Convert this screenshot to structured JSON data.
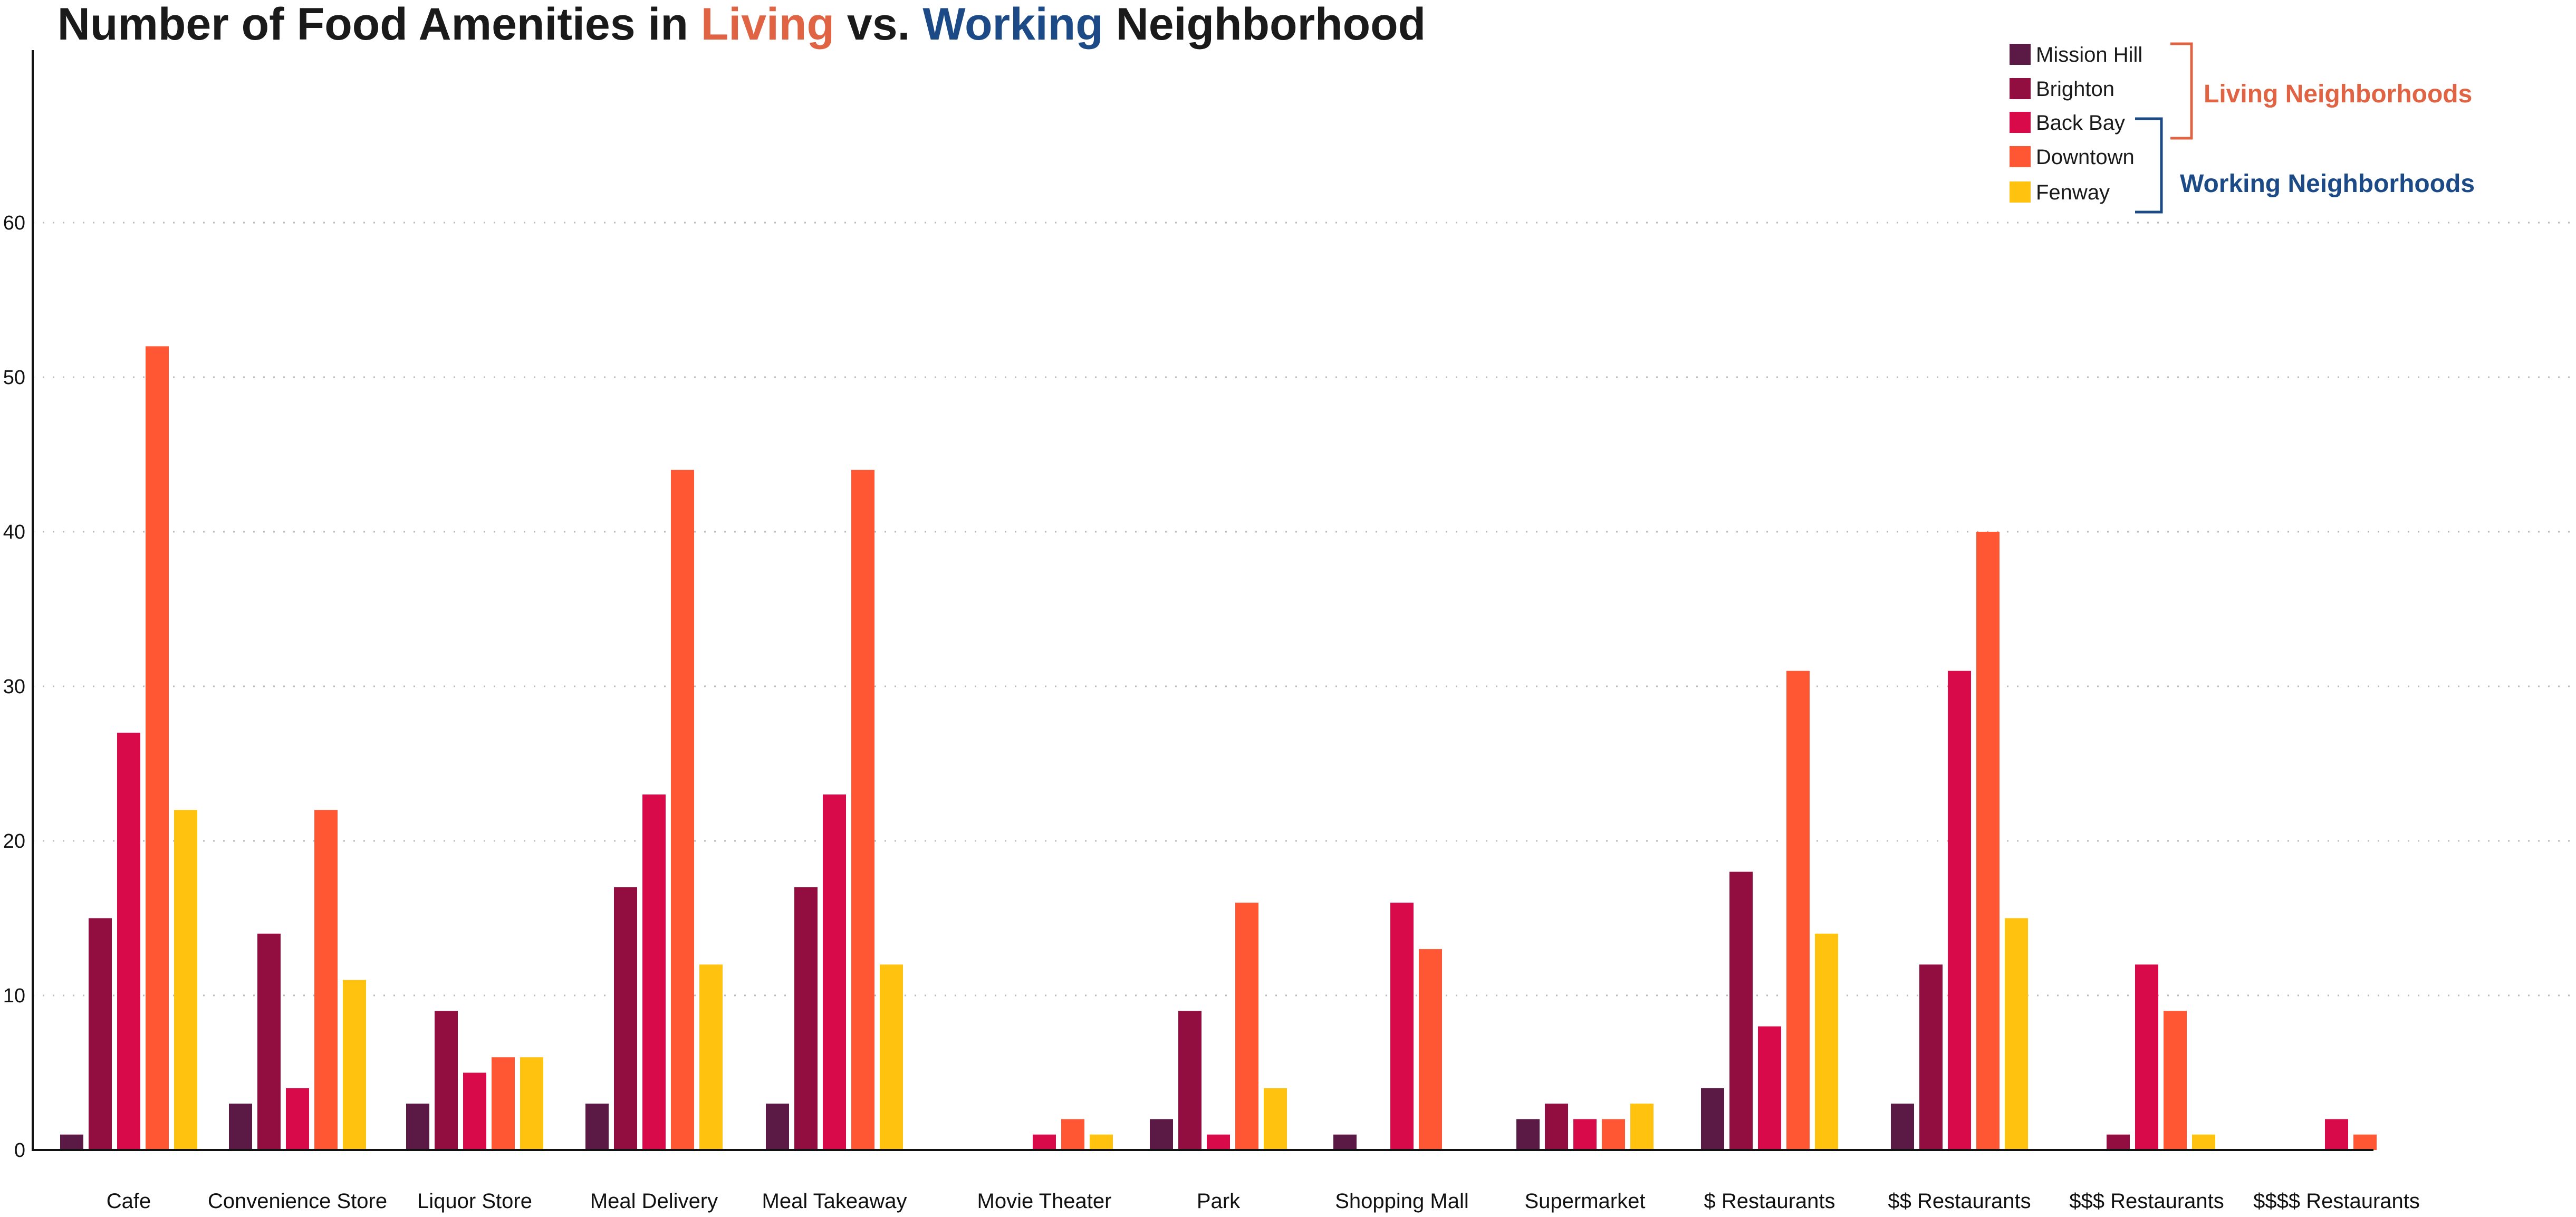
{
  "chart_data": {
    "type": "bar",
    "title_parts": {
      "before": "Number of Food Amenities in ",
      "living": "Living",
      "middle": " vs. ",
      "working": "Working",
      "after": " Neighborhood"
    },
    "xlabel": "",
    "ylabel": "",
    "ylim": [
      0,
      70
    ],
    "yticks": [
      0,
      10,
      20,
      30,
      40,
      50,
      60
    ],
    "grid": "horizontal dotted",
    "legend_position": "top-right",
    "categories": [
      "Cafe",
      "Convenience Store",
      "Liquor Store",
      "Meal Delivery",
      "Meal Takeaway",
      "Movie Theater",
      "Park",
      "Shopping Mall",
      "Supermarket",
      "$ Restaurants",
      "$$ Restaurants",
      "$$$ Restaurants",
      "$$$$ Restaurants"
    ],
    "series": [
      {
        "name": "Mission Hill",
        "color": "#5a1a45",
        "values": [
          1,
          3,
          3,
          3,
          3,
          0,
          2,
          1,
          2,
          4,
          3,
          0,
          0
        ]
      },
      {
        "name": "Brighton",
        "color": "#930e40",
        "values": [
          15,
          14,
          9,
          17,
          17,
          0,
          9,
          0,
          3,
          18,
          12,
          1,
          0
        ]
      },
      {
        "name": "Back Bay",
        "color": "#d90a4a",
        "values": [
          27,
          4,
          5,
          23,
          23,
          1,
          1,
          16,
          2,
          8,
          31,
          12,
          2
        ]
      },
      {
        "name": "Downtown",
        "color": "#ff5733",
        "values": [
          52,
          22,
          6,
          44,
          44,
          2,
          16,
          13,
          2,
          31,
          40,
          9,
          1
        ]
      },
      {
        "name": "Fenway",
        "color": "#ffc30f",
        "values": [
          22,
          11,
          6,
          12,
          12,
          1,
          4,
          0,
          3,
          14,
          15,
          1,
          0
        ]
      }
    ],
    "legend_groups": [
      {
        "label": "Living Neighborhoods",
        "color": "#e06443",
        "members": [
          "Mission Hill",
          "Brighton",
          "Back Bay"
        ]
      },
      {
        "label": "Working Neighborhoods",
        "color": "#1c4a86",
        "members": [
          "Back Bay",
          "Downtown",
          "Fenway"
        ]
      }
    ],
    "colors": {
      "living_accent": "#e06443",
      "working_accent": "#1c4a86",
      "title_text": "#1a1a1a",
      "grid": "#bbbbbb",
      "axis": "#111111"
    }
  }
}
